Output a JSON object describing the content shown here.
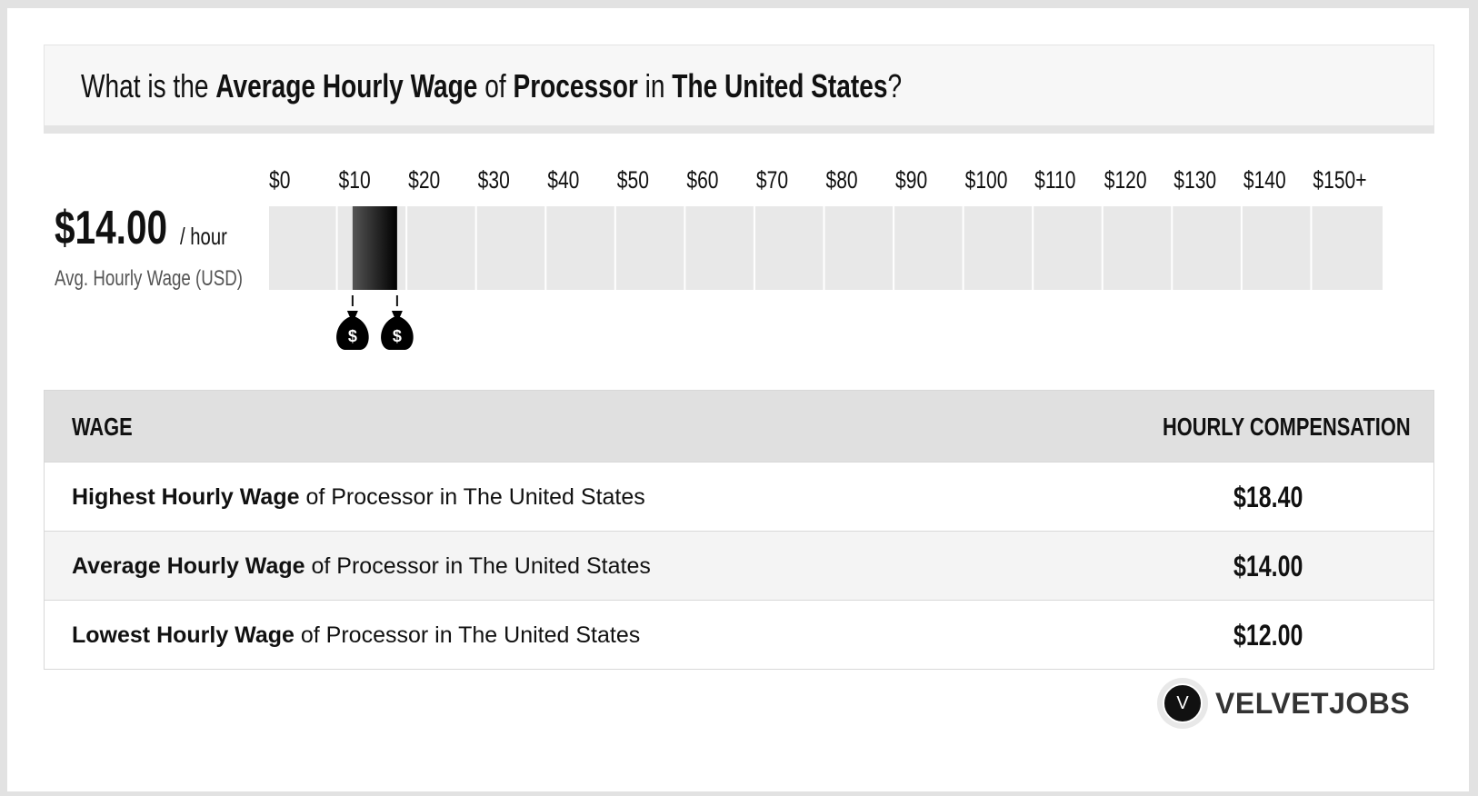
{
  "header": {
    "prefix": "What is the ",
    "metric": "Average Hourly Wage",
    "of": " of ",
    "job": "Processor",
    "in": " in ",
    "location": "The United States",
    "suffix": "?"
  },
  "summary": {
    "amount": "$14.00",
    "unit": "/ hour",
    "caption": "Avg. Hourly Wage (USD)"
  },
  "chart_data": {
    "type": "bar",
    "orientation": "horizontal-range",
    "tick_labels": [
      "$0",
      "$10",
      "$20",
      "$30",
      "$40",
      "$50",
      "$60",
      "$70",
      "$80",
      "$90",
      "$100",
      "$110",
      "$120",
      "$130",
      "$140",
      "$150+"
    ],
    "ticks": [
      0,
      10,
      20,
      30,
      40,
      50,
      60,
      70,
      80,
      90,
      100,
      110,
      120,
      130,
      140,
      150
    ],
    "xlim": [
      0,
      160
    ],
    "range": {
      "low": 12.0,
      "high": 18.4
    },
    "markers": [
      {
        "value": 12.0,
        "icon": "money-bag-icon",
        "symbol": "$"
      },
      {
        "value": 18.4,
        "icon": "money-bag-icon",
        "symbol": "$"
      }
    ],
    "colors": {
      "track": "#e8e8e8",
      "bar_dark": "#000000",
      "bar_light": "#555555",
      "grid": "#ffffff"
    }
  },
  "table": {
    "headers": {
      "wage": "WAGE",
      "comp": "HOURLY COMPENSATION"
    },
    "rows": [
      {
        "bold": "Highest Hourly Wage",
        "rest": " of Processor in The United States",
        "value": "$18.40"
      },
      {
        "bold": "Average Hourly Wage",
        "rest": " of Processor in The United States",
        "value": "$14.00"
      },
      {
        "bold": "Lowest Hourly Wage",
        "rest": " of Processor in The United States",
        "value": "$12.00"
      }
    ]
  },
  "brand": {
    "logo_letter": "V",
    "name": "VELVETJOBS"
  }
}
